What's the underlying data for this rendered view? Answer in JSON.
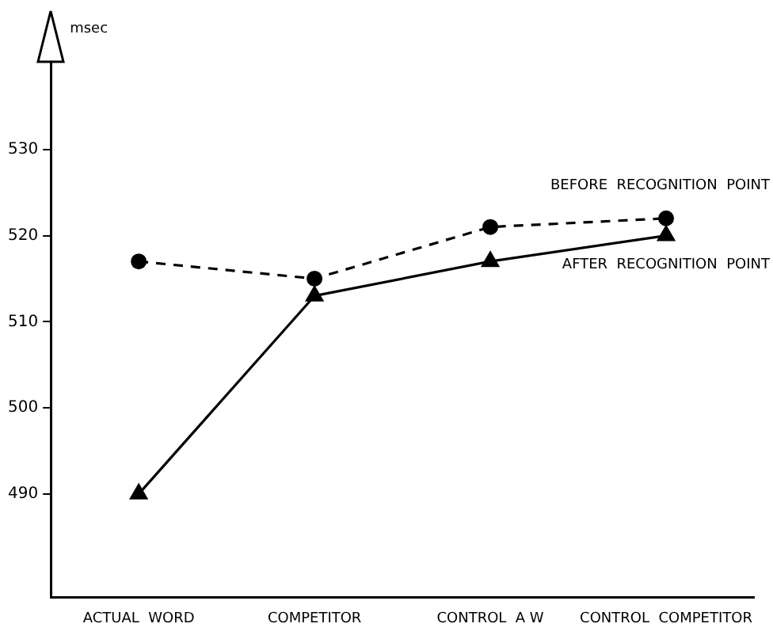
{
  "chart_data": {
    "type": "line",
    "ylabel": "msec",
    "categories": [
      "ACTUAL  WORD",
      "COMPETITOR",
      "CONTROL  A W",
      "CONTROL  COMPETITOR"
    ],
    "series": [
      {
        "name": "BEFORE  RECOGNITION  POINT",
        "color": "#000000",
        "values": [
          517,
          515,
          521,
          522
        ],
        "marker": "circle",
        "line_style": "dashed"
      },
      {
        "name": "AFTER  RECOGNITION  POINT",
        "color": "#000000",
        "values": [
          490,
          513,
          517,
          520
        ],
        "marker": "triangle",
        "line_style": "solid"
      }
    ],
    "ylim": [
      478,
      540
    ],
    "yticks": [
      490,
      500,
      510,
      520,
      530
    ],
    "grid": false,
    "legend": false
  }
}
